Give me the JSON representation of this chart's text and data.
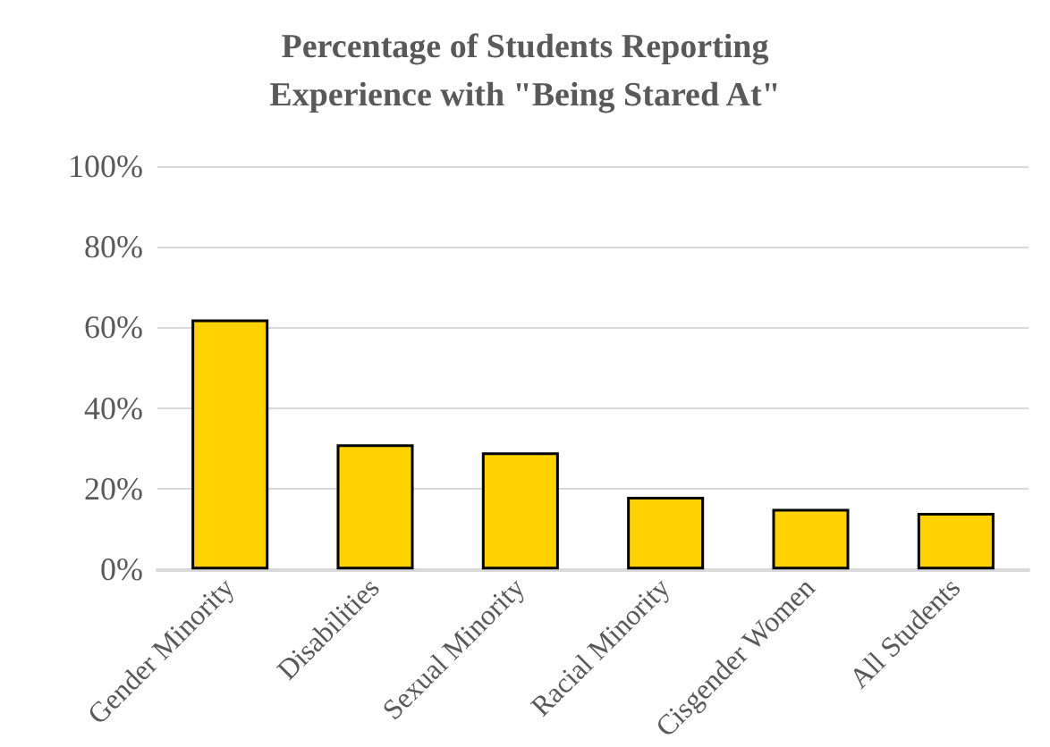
{
  "chart_data": {
    "type": "bar",
    "title": "Percentage of Students Reporting\nExperience with \"Being Stared At\"",
    "categories": [
      "Gender Minority",
      "Disabilities",
      "Sexual Minority",
      "Racial Minority",
      "Cisgender Women",
      "All Students"
    ],
    "values": [
      62,
      31,
      29,
      18,
      15,
      14
    ],
    "color": "#ffd200",
    "ylim": [
      0,
      100
    ],
    "yticks": [
      {
        "value": 0,
        "label": "0%"
      },
      {
        "value": 20,
        "label": "20%"
      },
      {
        "value": 40,
        "label": "40%"
      },
      {
        "value": 60,
        "label": "60%"
      },
      {
        "value": 80,
        "label": "80%"
      },
      {
        "value": 100,
        "label": "100%"
      }
    ],
    "grid": "y"
  }
}
